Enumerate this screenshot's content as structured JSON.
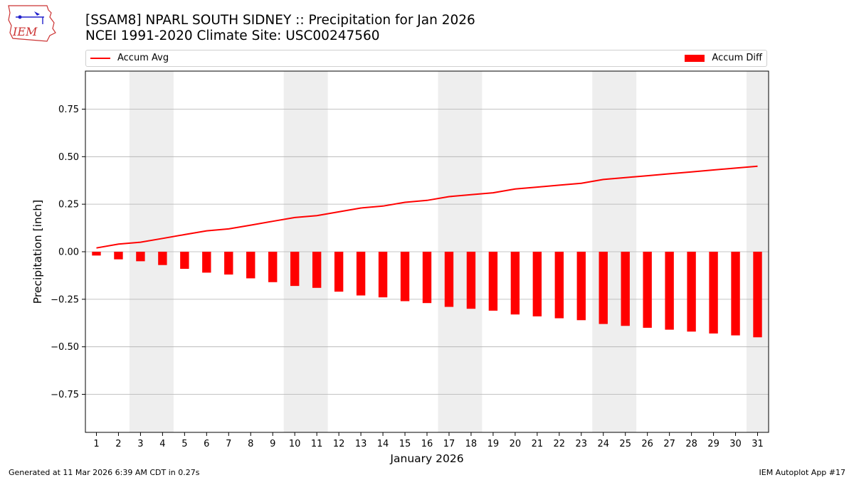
{
  "header": {
    "title_line1": "[SSAM8] NPARL SOUTH SIDNEY :: Precipitation for Jan 2026",
    "title_line2": "NCEI 1991-2020 Climate Site: USC00247560",
    "logo_text": "IEM"
  },
  "legend": {
    "line_label": "Accum Avg",
    "bar_label": "Accum Diff"
  },
  "footer": {
    "left": "Generated at 11 Mar 2026 6:39 AM CDT in 0.27s",
    "right": "IEM Autoplot App #17"
  },
  "colors": {
    "series": "#ff0000",
    "weekend_shade": "#eeeeee",
    "grid": "#b0b0b0",
    "logo_border": "#cc3333",
    "logo_blue": "#2222cc"
  },
  "chart_data": {
    "type": "bar",
    "xlabel": "January 2026",
    "ylabel": "Precipitation [inch]",
    "ylim": [
      -0.95,
      0.95
    ],
    "xlim": [
      0.5,
      31.5
    ],
    "yticks": [
      -0.75,
      -0.5,
      -0.25,
      0.0,
      0.25,
      0.5,
      0.75
    ],
    "ytick_labels": [
      "−0.75",
      "−0.50",
      "−0.25",
      "0.00",
      "0.25",
      "0.50",
      "0.75"
    ],
    "grid": "horizontal",
    "legend_placement": "top",
    "x": [
      1,
      2,
      3,
      4,
      5,
      6,
      7,
      8,
      9,
      10,
      11,
      12,
      13,
      14,
      15,
      16,
      17,
      18,
      19,
      20,
      21,
      22,
      23,
      24,
      25,
      26,
      27,
      28,
      29,
      30,
      31
    ],
    "x_tick_labels": [
      "1",
      "2",
      "3",
      "4",
      "5",
      "6",
      "7",
      "8",
      "9",
      "10",
      "11",
      "12",
      "13",
      "14",
      "15",
      "16",
      "17",
      "18",
      "19",
      "20",
      "21",
      "22",
      "23",
      "24",
      "25",
      "26",
      "27",
      "28",
      "29",
      "30",
      "31"
    ],
    "weekend_spans": [
      [
        2.5,
        4.5
      ],
      [
        9.5,
        11.5
      ],
      [
        16.5,
        18.5
      ],
      [
        23.5,
        25.5
      ],
      [
        30.5,
        31.5
      ]
    ],
    "series": [
      {
        "name": "Accum Avg",
        "type": "line",
        "values": [
          0.02,
          0.04,
          0.05,
          0.07,
          0.09,
          0.11,
          0.12,
          0.14,
          0.16,
          0.18,
          0.19,
          0.21,
          0.23,
          0.24,
          0.26,
          0.27,
          0.29,
          0.3,
          0.31,
          0.33,
          0.34,
          0.35,
          0.36,
          0.38,
          0.39,
          0.4,
          0.41,
          0.42,
          0.43,
          0.44,
          0.45
        ]
      },
      {
        "name": "Accum Diff",
        "type": "bar",
        "values": [
          -0.02,
          -0.04,
          -0.05,
          -0.07,
          -0.09,
          -0.11,
          -0.12,
          -0.14,
          -0.16,
          -0.18,
          -0.19,
          -0.21,
          -0.23,
          -0.24,
          -0.26,
          -0.27,
          -0.29,
          -0.3,
          -0.31,
          -0.33,
          -0.34,
          -0.35,
          -0.36,
          -0.38,
          -0.39,
          -0.4,
          -0.41,
          -0.42,
          -0.43,
          -0.44,
          -0.45
        ]
      }
    ]
  }
}
